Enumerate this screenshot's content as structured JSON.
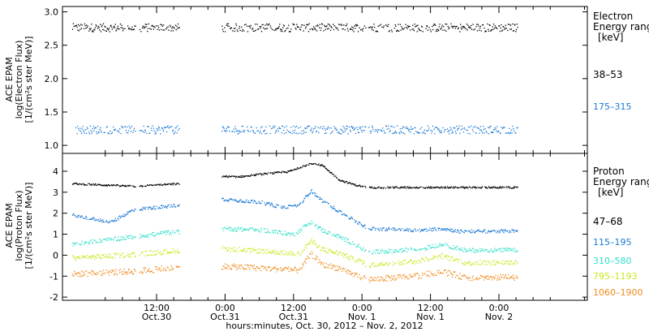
{
  "colors": {
    "black": "#000000",
    "blue": "#1a78d4",
    "cyan": "#2ee0c8",
    "yellowgreen": "#c8e81a",
    "orange": "#f08a1c"
  },
  "xaxis": {
    "label": "hours:minutes, Oct. 30, 2012 – Nov. 2, 2012",
    "range_hours": [
      -4.5,
      87.5
    ],
    "ticks": [
      {
        "h": 12,
        "top": "12:00",
        "bottom": "Oct.30"
      },
      {
        "h": 24,
        "top": "0:00",
        "bottom": "Oct.31"
      },
      {
        "h": 36,
        "top": "12:00",
        "bottom": "Oct.31"
      },
      {
        "h": 48,
        "top": "0:00",
        "bottom": "Nov. 1"
      },
      {
        "h": 60,
        "top": "12:00",
        "bottom": "Nov. 1"
      },
      {
        "h": 72,
        "top": "0:00",
        "bottom": "Nov. 2"
      }
    ],
    "data_gaps_hours": [
      [
        8.3,
        8.9
      ],
      [
        15.9,
        23.3
      ],
      [
        48.6,
        49.1
      ]
    ]
  },
  "electron_panel": {
    "ylabel_lines": [
      "ACE EPAM",
      "log(Electron Flux)",
      "[1/(cm²s ster MeV)]"
    ],
    "ylim": [
      0.88,
      3.08
    ],
    "yticks": [
      "1.0",
      "1.5",
      "2.0",
      "2.5",
      "3.0"
    ],
    "legend_title": [
      "Electron",
      "Energy ranges",
      "[keV]"
    ],
    "series": [
      {
        "name": "38–53",
        "color": "#000000",
        "level": 2.77,
        "spread": 0.06
      },
      {
        "name": "175–315",
        "color": "#1a78d4",
        "level": 1.24,
        "spread": 0.06
      }
    ]
  },
  "proton_panel": {
    "ylabel_lines": [
      "ACE EPAM",
      "log(Proton Flux)",
      "[1/(cm²s ster MeV)]"
    ],
    "ylim": [
      -2.15,
      4.85
    ],
    "yticks": [
      "-2",
      "-1",
      "0",
      "1",
      "2",
      "3",
      "4"
    ],
    "legend_title": [
      "Proton",
      "Energy ranges",
      "[keV]"
    ],
    "series": [
      {
        "name": "47–68",
        "color": "#000000",
        "spread": 0.04,
        "profile": [
          [
            -4.5,
            3.45
          ],
          [
            8,
            3.3
          ],
          [
            14,
            3.4
          ],
          [
            19,
            3.45
          ],
          [
            22,
            3.8
          ],
          [
            26,
            3.75
          ],
          [
            31,
            3.9
          ],
          [
            35,
            4.0
          ],
          [
            39,
            4.4
          ],
          [
            41,
            4.3
          ],
          [
            44,
            3.6
          ],
          [
            47,
            3.35
          ],
          [
            49,
            3.25
          ],
          [
            87.5,
            3.25
          ]
        ]
      },
      {
        "name": "115–195",
        "color": "#1a78d4",
        "spread": 0.08,
        "profile": [
          [
            -4.5,
            2.0
          ],
          [
            4,
            1.6
          ],
          [
            8,
            2.2
          ],
          [
            14,
            2.35
          ],
          [
            19,
            2.5
          ],
          [
            23,
            2.7
          ],
          [
            30,
            2.55
          ],
          [
            34,
            2.3
          ],
          [
            37,
            2.4
          ],
          [
            39,
            3.1
          ],
          [
            41,
            2.6
          ],
          [
            44,
            2.1
          ],
          [
            47,
            1.6
          ],
          [
            49,
            1.3
          ],
          [
            58,
            1.2
          ],
          [
            62,
            1.3
          ],
          [
            65,
            1.15
          ],
          [
            87.5,
            1.2
          ]
        ]
      },
      {
        "name": "310–580",
        "color": "#2ee0c8",
        "spread": 0.1,
        "profile": [
          [
            -4.5,
            0.5
          ],
          [
            8,
            0.9
          ],
          [
            14,
            1.1
          ],
          [
            19,
            1.2
          ],
          [
            23,
            1.3
          ],
          [
            31,
            1.2
          ],
          [
            36,
            1.0
          ],
          [
            39,
            1.6
          ],
          [
            41,
            1.2
          ],
          [
            44,
            0.9
          ],
          [
            47,
            0.5
          ],
          [
            49,
            0.15
          ],
          [
            58,
            0.3
          ],
          [
            62,
            0.55
          ],
          [
            66,
            0.25
          ],
          [
            87.5,
            0.3
          ]
        ]
      },
      {
        "name": "795–1193",
        "color": "#c8e81a",
        "spread": 0.12,
        "profile": [
          [
            -4.5,
            -0.15
          ],
          [
            8,
            0.05
          ],
          [
            14,
            0.2
          ],
          [
            19,
            0.3
          ],
          [
            23,
            0.35
          ],
          [
            31,
            0.2
          ],
          [
            37,
            0.1
          ],
          [
            39,
            0.7
          ],
          [
            41,
            0.3
          ],
          [
            44,
            0.1
          ],
          [
            47,
            -0.2
          ],
          [
            49,
            -0.45
          ],
          [
            58,
            -0.25
          ],
          [
            62,
            0.0
          ],
          [
            66,
            -0.35
          ],
          [
            87.5,
            -0.3
          ]
        ]
      },
      {
        "name": "1060–1900",
        "color": "#f08a1c",
        "spread": 0.14,
        "profile": [
          [
            -4.5,
            -0.9
          ],
          [
            8,
            -0.75
          ],
          [
            14,
            -0.6
          ],
          [
            19,
            -0.55
          ],
          [
            23,
            -0.5
          ],
          [
            31,
            -0.6
          ],
          [
            37,
            -0.7
          ],
          [
            39,
            0.1
          ],
          [
            41,
            -0.45
          ],
          [
            44,
            -0.6
          ],
          [
            47,
            -0.95
          ],
          [
            49,
            -1.15
          ],
          [
            58,
            -0.95
          ],
          [
            62,
            -0.75
          ],
          [
            66,
            -1.05
          ],
          [
            87.5,
            -1.0
          ]
        ]
      }
    ]
  },
  "chart_data": [
    {
      "type": "scatter",
      "title": "",
      "xlabel": "hours:minutes, Oct. 30, 2012 – Nov. 2, 2012",
      "ylabel": "ACE EPAM log(Electron Flux) [1/(cm²s ster MeV)]",
      "ylim": [
        0.88,
        3.08
      ],
      "x": [
        "Oct.30 08:00",
        "Oct.30 16:00",
        "Oct.31 10:00",
        "Nov. 1 00:00",
        "Nov. 1 12:00",
        "Nov. 2 03:00"
      ],
      "series": [
        {
          "name": "38–53",
          "values": [
            2.77,
            2.76,
            2.76,
            2.77,
            2.76,
            2.77
          ]
        },
        {
          "name": "175–315",
          "values": [
            1.24,
            1.23,
            1.24,
            1.25,
            1.24,
            1.25
          ]
        }
      ],
      "grid": false,
      "legend": "right"
    },
    {
      "type": "scatter",
      "title": "",
      "xlabel": "hours:minutes, Oct. 30, 2012 – Nov. 2, 2012",
      "ylabel": "ACE EPAM log(Proton Flux) [1/(cm²s ster MeV)]",
      "ylim": [
        -2.15,
        4.85
      ],
      "x": [
        "Oct.30 08:00",
        "Oct.30 22:00",
        "Oct.31 14:00",
        "Oct.31 17:00",
        "Nov. 1 00:00",
        "Nov. 1 14:00",
        "Nov. 2 02:00"
      ],
      "series": [
        {
          "name": "47–68",
          "values": [
            3.3,
            3.8,
            4.4,
            3.6,
            3.3,
            3.25,
            3.25
          ]
        },
        {
          "name": "115–195",
          "values": [
            2.2,
            2.7,
            3.1,
            2.1,
            1.3,
            1.2,
            1.2
          ]
        },
        {
          "name": "310–580",
          "values": [
            0.9,
            1.3,
            1.6,
            0.9,
            0.2,
            0.5,
            0.3
          ]
        },
        {
          "name": "795–1193",
          "values": [
            0.05,
            0.35,
            0.7,
            0.1,
            -0.4,
            0.0,
            -0.3
          ]
        },
        {
          "name": "1060–1900",
          "values": [
            -0.75,
            -0.5,
            0.1,
            -0.6,
            -1.1,
            -0.75,
            -1.0
          ]
        }
      ],
      "grid": false,
      "legend": "right"
    }
  ]
}
